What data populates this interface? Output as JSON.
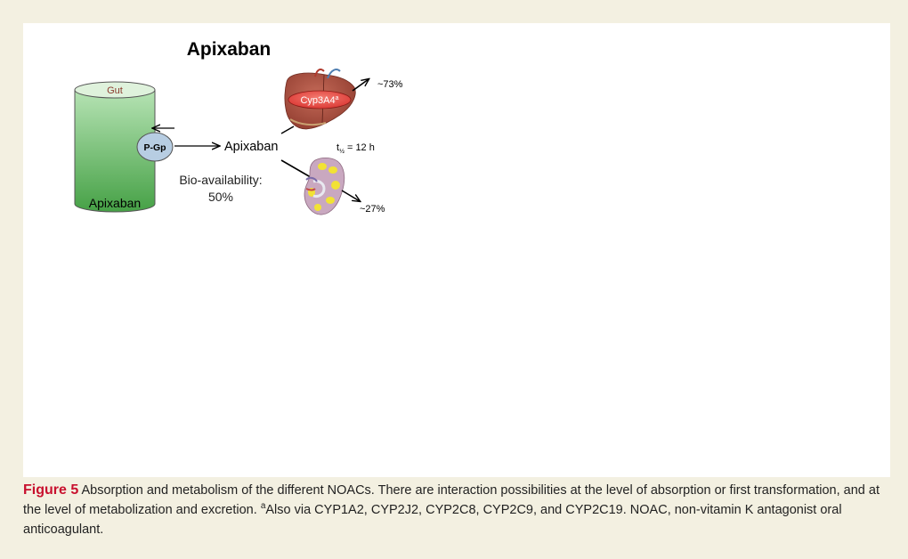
{
  "diagram": {
    "title": "Apixaban",
    "gut": {
      "top_label": "Gut",
      "bottom_label": "Apixaban"
    },
    "transporter": "P-Gp",
    "drug_label": "Apixaban",
    "bioavailability": {
      "line1": "Bio-availability:",
      "line2": "50%"
    },
    "enzyme": {
      "name": "Cyp3A4",
      "superscript": "a"
    },
    "half_life": {
      "t": "t",
      "sub": "½",
      "value": " = 12 h"
    },
    "liver_share": "~73%",
    "kidney_share": "~27%",
    "colors": {
      "gut_top": "#a8dca8",
      "gut_bottom": "#3f9b3f",
      "pgp": "#b7cde2",
      "enzyme": "#e8403f",
      "liver": "#a64b3c",
      "kidney": "#c9a8c0",
      "kidney_yellow": "#f2e234"
    }
  },
  "caption": {
    "label": "Figure 5",
    "text1": " Absorption and metabolism of the different NOACs. There are interaction possibilities at the level of absorption or first transformation, and at the level of metabolization and excretion. ",
    "superscript": "a",
    "text2": "Also via CYP1A2, CYP2J2, CYP2C8, CYP2C9, and CYP2C19. NOAC, non-vitamin K antagonist oral anticoagulant."
  }
}
